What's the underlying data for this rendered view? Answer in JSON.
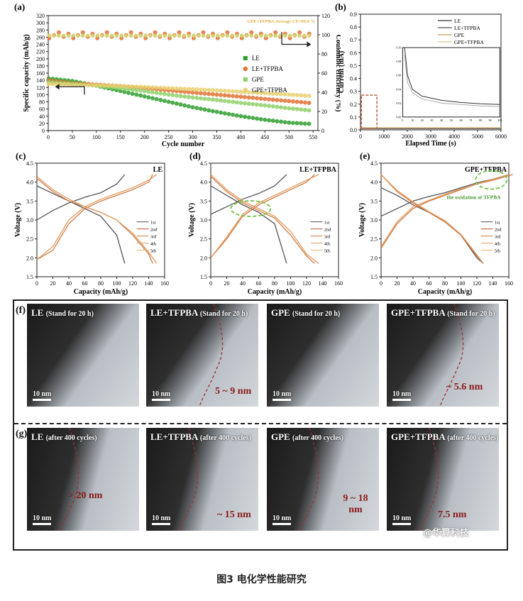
{
  "panel_a": {
    "letter": "(a)",
    "annotation": "GPE+TFPBA Average CE=99.8 %",
    "ylabel_left": "Specific capacity (mAh/g)",
    "ylabel_right": "Coulombic efficiency (%)",
    "xlabel": "Cycle number",
    "legend": [
      "LE",
      "LE+TFPBA",
      "GPE",
      "GPE+TFPBA"
    ]
  },
  "panel_b": {
    "letter": "(b)",
    "ylabel": "Current (mA)",
    "xlabel": "Elapsed Time (s)",
    "legend": [
      "LE",
      "LE+TFPBA",
      "GPE",
      "GPE+TFPBA"
    ]
  },
  "panel_c": {
    "letter": "(c)",
    "title": "LE",
    "ylabel": "Voltage (V)",
    "xlabel": "Capacity (mAh/g)"
  },
  "panel_d": {
    "letter": "(d)",
    "title": "LE+TFPBA",
    "ylabel": "Voltage (V)",
    "xlabel": "Capacity (mAh/g)"
  },
  "panel_e": {
    "letter": "(e)",
    "title": "GPE+TFPBA",
    "ylabel": "Voltage (V)",
    "xlabel": "Capacity (mAh/g)",
    "annotation": "the oxidation of TFPBA"
  },
  "cycle_legend": [
    "1st",
    "2nd",
    "3rd",
    "4th",
    "5th"
  ],
  "tem": {
    "row_f_letter": "(f)",
    "row_g_letter": "(g)",
    "scale": "10 nm",
    "row_f": [
      {
        "name": "LE",
        "cond": "(Stand for 20 h)",
        "thickness": ""
      },
      {
        "name": "LE+TFPBA",
        "cond": "(Stand for 20 h)",
        "thickness": "5 ~ 9 nm"
      },
      {
        "name": "GPE",
        "cond": "(Stand for 20 h)",
        "thickness": ""
      },
      {
        "name": "GPE+TFPBA",
        "cond": "(Stand for 20 h)",
        "thickness": "~ 5.6 nm"
      }
    ],
    "row_g": [
      {
        "name": "LE",
        "cond": "(after 400 cycles)",
        "thickness": "> 20 nm"
      },
      {
        "name": "LE+TFPBA",
        "cond": "(after 400 cycles)",
        "thickness": "~ 15 nm"
      },
      {
        "name": "GPE",
        "cond": "(after 400 cycles)",
        "thickness": "9 ~ 18 nm"
      },
      {
        "name": "GPE+TFPBA",
        "cond": "(after 400 cycles)",
        "thickness": "7.5 nm"
      }
    ]
  },
  "watermark": "@华算科技",
  "caption": "图3 电化学性能研究",
  "colors": {
    "LE": "#2e9e2e",
    "LE_TFPBA": "#e07030",
    "GPE": "#8fd06a",
    "GPE_TFPBA": "#e8d070",
    "dashed_red": "#a03030",
    "oval_green": "#7cc84c"
  },
  "chart_data": [
    {
      "type": "scatter",
      "title": "",
      "xlabel": "Cycle number",
      "ylabel": "Specific capacity (mAh/g)",
      "ylabel_right": "Coulombic efficiency (%)",
      "xlim": [
        0,
        560
      ],
      "ylim": [
        0,
        320
      ],
      "ylim_right": [
        0,
        120
      ],
      "xticks": [
        0,
        50,
        100,
        150,
        200,
        250,
        300,
        350,
        400,
        450,
        500,
        550
      ],
      "yticks": [
        0,
        20,
        40,
        60,
        80,
        100,
        120,
        140,
        160,
        180,
        200,
        220,
        240,
        260,
        280,
        300,
        320
      ],
      "yticks_right": [
        0,
        20,
        40,
        60,
        80,
        100,
        120
      ],
      "legend_position": "center-right",
      "series": [
        {
          "name": "LE",
          "color": "#2e9e2e",
          "x": [
            1,
            50,
            100,
            150,
            200,
            250,
            300,
            350,
            400,
            450,
            500,
            550
          ],
          "y": [
            145,
            138,
            125,
            110,
            95,
            80,
            65,
            52,
            40,
            30,
            22,
            18
          ]
        },
        {
          "name": "LE+TFPBA",
          "color": "#e07030",
          "x": [
            1,
            50,
            100,
            150,
            200,
            250,
            300,
            350,
            400,
            450,
            500,
            550
          ],
          "y": [
            140,
            132,
            128,
            124,
            118,
            112,
            106,
            100,
            94,
            88,
            82,
            76
          ]
        },
        {
          "name": "GPE",
          "color": "#8fd06a",
          "x": [
            1,
            50,
            100,
            150,
            200,
            250,
            300,
            350,
            400,
            450,
            500,
            550
          ],
          "y": [
            135,
            130,
            125,
            118,
            110,
            100,
            92,
            85,
            77,
            70,
            62,
            55
          ]
        },
        {
          "name": "GPE+TFPBA",
          "color": "#e8d070",
          "x": [
            1,
            50,
            100,
            150,
            200,
            250,
            300,
            350,
            400,
            450,
            500,
            550
          ],
          "y": [
            130,
            128,
            126,
            124,
            121,
            118,
            115,
            112,
            108,
            104,
            100,
            96
          ]
        }
      ],
      "ce_series": {
        "name": "GPE+TFPBA",
        "x": [
          1,
          50,
          100,
          150,
          200,
          250,
          300,
          350,
          400,
          450,
          500,
          550
        ],
        "y": [
          95,
          99.8,
          99.8,
          99.8,
          99.8,
          99.8,
          99.8,
          99.8,
          99.8,
          99.8,
          99.8,
          99.8
        ]
      }
    },
    {
      "type": "line",
      "title": "",
      "xlabel": "Elapsed Time (s)",
      "ylabel": "Current (mA)",
      "xlim": [
        0,
        6000
      ],
      "ylim": [
        0,
        0.9
      ],
      "xticks": [
        0,
        1000,
        2000,
        3000,
        4000,
        5000,
        6000
      ],
      "yticks": [
        0.0,
        0.1,
        0.2,
        0.3,
        0.4,
        0.5,
        0.6,
        0.7,
        0.8,
        0.9
      ],
      "legend_position": "top-right",
      "series": [
        {
          "name": "LE",
          "color": "#333333",
          "x": [
            0,
            1000,
            6000
          ],
          "y": [
            0.01,
            0.01,
            0.01
          ]
        },
        {
          "name": "LE+TFPBA",
          "color": "#555555",
          "x": [
            0,
            1000,
            6000
          ],
          "y": [
            0.01,
            0.01,
            0.01
          ]
        },
        {
          "name": "GPE",
          "color": "#c8a060",
          "x": [
            0,
            1000,
            6000
          ],
          "y": [
            0.01,
            0.01,
            0.01
          ]
        },
        {
          "name": "GPE+TFPBA",
          "color": "#d8c890",
          "x": [
            0,
            1000,
            6000
          ],
          "y": [
            0.01,
            0.01,
            0.01
          ]
        }
      ],
      "inset": {
        "xlim": [
          0,
          100
        ],
        "ylim": [
          0,
          0.1
        ],
        "xticks": [
          0,
          10,
          20,
          30,
          40,
          50,
          60,
          70,
          80,
          90,
          100
        ],
        "yticks": [
          0.0,
          0.02,
          0.04,
          0.06,
          0.08,
          0.1
        ],
        "series": [
          {
            "name": "LE",
            "x": [
              2,
              5,
              10,
              20,
              40,
              60,
              80,
              100
            ],
            "y": [
              0.1,
              0.06,
              0.04,
              0.03,
              0.024,
              0.021,
              0.019,
              0.018
            ]
          },
          {
            "name": "GPE+TFPBA",
            "x": [
              2,
              5,
              10,
              20,
              40,
              60,
              80,
              100
            ],
            "y": [
              0.09,
              0.05,
              0.035,
              0.026,
              0.02,
              0.018,
              0.016,
              0.015
            ]
          }
        ]
      }
    },
    {
      "type": "line",
      "title": "LE",
      "xlabel": "Capacity (mAh/g)",
      "ylabel": "Voltage (V)",
      "xlim": [
        0,
        160
      ],
      "ylim": [
        1.5,
        4.5
      ],
      "xticks": [
        0,
        20,
        40,
        60,
        80,
        100,
        120,
        140,
        160
      ],
      "yticks": [
        1.5,
        2.0,
        2.5,
        3.0,
        3.5,
        4.0,
        4.5
      ],
      "legend_position": "bottom-right",
      "series": [
        {
          "name": "1st",
          "charge_x": [
            0,
            20,
            40,
            60,
            80,
            100,
            110
          ],
          "charge_y": [
            3.0,
            3.25,
            3.45,
            3.6,
            3.72,
            3.95,
            4.2
          ],
          "discharge_x": [
            0,
            20,
            40,
            60,
            80,
            100,
            110
          ],
          "discharge_y": [
            3.9,
            3.7,
            3.5,
            3.3,
            3.1,
            2.6,
            1.85
          ]
        },
        {
          "name": "2nd",
          "charge_x": [
            0,
            20,
            40,
            60,
            80,
            100,
            120,
            140,
            145
          ],
          "charge_y": [
            1.95,
            2.2,
            2.9,
            3.3,
            3.5,
            3.65,
            3.8,
            4.0,
            4.2
          ],
          "discharge_x": [
            0,
            20,
            40,
            60,
            80,
            100,
            120,
            140,
            145
          ],
          "discharge_y": [
            4.1,
            3.75,
            3.5,
            3.35,
            3.2,
            3.0,
            2.6,
            2.1,
            1.85
          ]
        },
        {
          "name": "5th",
          "charge_x": [
            0,
            20,
            40,
            60,
            80,
            100,
            120,
            140,
            150
          ],
          "charge_y": [
            1.95,
            2.3,
            3.0,
            3.35,
            3.55,
            3.7,
            3.85,
            4.05,
            4.2
          ],
          "discharge_x": [
            0,
            20,
            40,
            60,
            80,
            100,
            120,
            140,
            150
          ],
          "discharge_y": [
            4.15,
            3.8,
            3.55,
            3.35,
            3.2,
            3.0,
            2.65,
            2.15,
            1.85
          ]
        }
      ]
    },
    {
      "type": "line",
      "title": "LE+TFPBA",
      "xlabel": "Capacity (mAh/g)",
      "ylabel": "Voltage (V)",
      "xlim": [
        0,
        160
      ],
      "ylim": [
        1.5,
        4.5
      ],
      "xticks": [
        0,
        20,
        40,
        60,
        80,
        100,
        120,
        140,
        160
      ],
      "yticks": [
        1.5,
        2.0,
        2.5,
        3.0,
        3.5,
        4.0,
        4.5
      ],
      "legend_position": "bottom-right",
      "series": [
        {
          "name": "1st",
          "charge_x": [
            0,
            20,
            40,
            60,
            80,
            95
          ],
          "charge_y": [
            3.15,
            3.35,
            3.55,
            3.7,
            3.9,
            4.2
          ],
          "discharge_x": [
            0,
            20,
            40,
            60,
            80,
            95
          ],
          "discharge_y": [
            3.9,
            3.65,
            3.4,
            3.2,
            2.9,
            1.85
          ]
        },
        {
          "name": "2nd",
          "charge_x": [
            0,
            20,
            40,
            60,
            80,
            100,
            120,
            130
          ],
          "charge_y": [
            2.0,
            2.5,
            3.1,
            3.4,
            3.6,
            3.8,
            4.0,
            4.2
          ],
          "discharge_x": [
            0,
            20,
            40,
            60,
            80,
            100,
            120,
            130
          ],
          "discharge_y": [
            4.15,
            3.75,
            3.45,
            3.25,
            3.05,
            2.6,
            2.05,
            1.85
          ]
        },
        {
          "name": "5th",
          "charge_x": [
            0,
            20,
            40,
            60,
            80,
            100,
            120,
            135
          ],
          "charge_y": [
            2.0,
            2.55,
            3.15,
            3.45,
            3.65,
            3.85,
            4.05,
            4.2
          ],
          "discharge_x": [
            0,
            20,
            40,
            60,
            80,
            100,
            120,
            135
          ],
          "discharge_y": [
            4.2,
            3.8,
            3.5,
            3.3,
            3.1,
            2.7,
            2.1,
            1.85
          ]
        }
      ]
    },
    {
      "type": "line",
      "title": "GPE+TFPBA",
      "xlabel": "Capacity (mAh/g)",
      "ylabel": "Voltage (V)",
      "xlim": [
        0,
        160
      ],
      "ylim": [
        1.5,
        4.5
      ],
      "xticks": [
        0,
        20,
        40,
        60,
        80,
        100,
        120,
        140,
        160
      ],
      "yticks": [
        1.5,
        2.0,
        2.5,
        3.0,
        3.5,
        4.0,
        4.5
      ],
      "legend_position": "bottom-right",
      "series": [
        {
          "name": "1st",
          "charge_x": [
            0,
            20,
            40,
            60,
            80,
            100,
            120,
            140,
            160
          ],
          "charge_y": [
            3.1,
            3.3,
            3.5,
            3.62,
            3.72,
            3.85,
            3.98,
            4.08,
            4.2
          ],
          "discharge_x": [
            0,
            20,
            40,
            60,
            80,
            100,
            120,
            128
          ],
          "discharge_y": [
            3.85,
            3.65,
            3.4,
            3.2,
            2.95,
            2.6,
            2.0,
            1.85
          ]
        },
        {
          "name": "2nd",
          "charge_x": [
            0,
            20,
            40,
            60,
            80,
            100,
            120,
            140,
            165
          ],
          "charge_y": [
            2.25,
            2.9,
            3.3,
            3.5,
            3.65,
            3.8,
            3.95,
            4.05,
            4.2
          ],
          "discharge_x": [
            0,
            20,
            40,
            60,
            80,
            100,
            120,
            128
          ],
          "discharge_y": [
            4.2,
            3.75,
            3.45,
            3.2,
            2.95,
            2.6,
            2.05,
            1.85
          ]
        },
        {
          "name": "5th",
          "charge_x": [
            0,
            20,
            40,
            60,
            80,
            100,
            120,
            140,
            160
          ],
          "charge_y": [
            2.3,
            2.95,
            3.35,
            3.52,
            3.68,
            3.82,
            3.95,
            4.08,
            4.2
          ],
          "discharge_x": [
            0,
            20,
            40,
            60,
            80,
            100,
            120,
            128
          ],
          "discharge_y": [
            4.2,
            3.78,
            3.48,
            3.22,
            2.98,
            2.62,
            2.08,
            1.85
          ]
        }
      ]
    }
  ]
}
